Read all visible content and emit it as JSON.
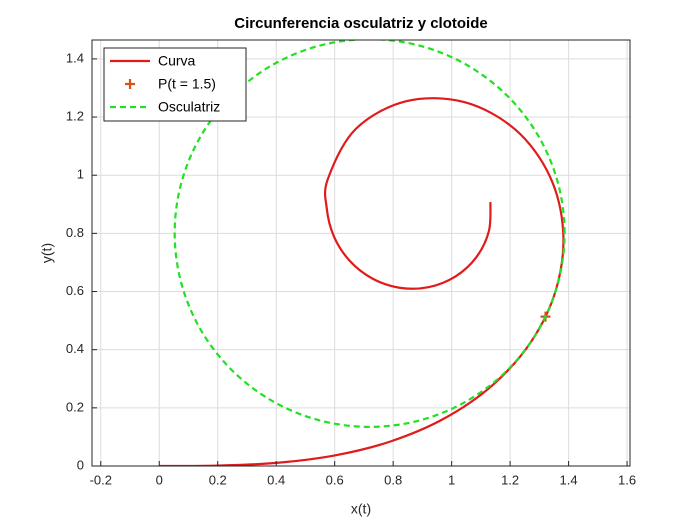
{
  "chart_data": {
    "type": "line",
    "title": "Circunferencia osculatriz y clotoide",
    "xlabel": "x(t)",
    "ylabel": "y(t)",
    "xlim": [
      -0.23,
      1.61
    ],
    "ylim": [
      0,
      1.465
    ],
    "xticks": [
      -0.2,
      0,
      0.2,
      0.4,
      0.6,
      0.8,
      1,
      1.2,
      1.4,
      1.6
    ],
    "yticks": [
      0,
      0.2,
      0.4,
      0.6,
      0.8,
      1,
      1.2,
      1.4
    ],
    "grid": true,
    "legend": "northwest",
    "series": [
      {
        "name": "Curva",
        "color": "#e01b1b",
        "linestyle": "solid",
        "marker": "none",
        "smooth": true,
        "x": [
          0,
          0.2,
          0.3997,
          0.5981,
          0.7918,
          0.9753,
          1.1393,
          1.2714,
          1.357,
          1.3816,
          1.3352,
          1.2173,
          1.0428,
          0.8449,
          0.672,
          0.5765,
          0.5729,
          0.5972,
          0.6504,
          0.7278,
          0.8214,
          0.9204,
          1.0125,
          1.0852,
          1.1276,
          1.1328
        ],
        "y": [
          0,
          0.0013,
          0.0107,
          0.0359,
          0.0847,
          0.1637,
          0.2775,
          0.4269,
          0.6068,
          0.8043,
          0.9976,
          1.1573,
          1.2515,
          1.2545,
          1.1589,
          0.9864,
          0.8859,
          0.7899,
          0.7068,
          0.6453,
          0.613,
          0.6149,
          0.6515,
          0.719,
          0.8086,
          0.9076
        ]
      },
      {
        "name": "P(t = 1.5)",
        "color": "#d95319",
        "linestyle": "none",
        "marker": "+",
        "x": [
          1.321
        ],
        "y": [
          0.5137
        ]
      },
      {
        "name": "Osculatriz",
        "color": "#22e022",
        "linestyle": "dashed",
        "marker": "none",
        "smooth": true,
        "closed": true,
        "x": [
          1.3862,
          1.3635,
          1.2969,
          1.1909,
          1.0528,
          0.8921,
          0.7195,
          0.5469,
          0.3862,
          0.2481,
          0.1421,
          0.0755,
          0.0528,
          0.0755,
          0.1421,
          0.2481,
          0.3862,
          0.5469,
          0.7195,
          0.8921,
          1.0528,
          1.1909,
          1.2969,
          1.3635
        ],
        "y": [
          0.8012,
          0.9738,
          1.1345,
          1.2726,
          1.3786,
          1.4452,
          1.4679,
          1.4452,
          1.3786,
          1.2726,
          1.1345,
          0.9738,
          0.8012,
          0.6286,
          0.4679,
          0.3298,
          0.2238,
          0.1572,
          0.1345,
          0.1572,
          0.2238,
          0.3298,
          0.4679,
          0.6286
        ]
      }
    ]
  }
}
